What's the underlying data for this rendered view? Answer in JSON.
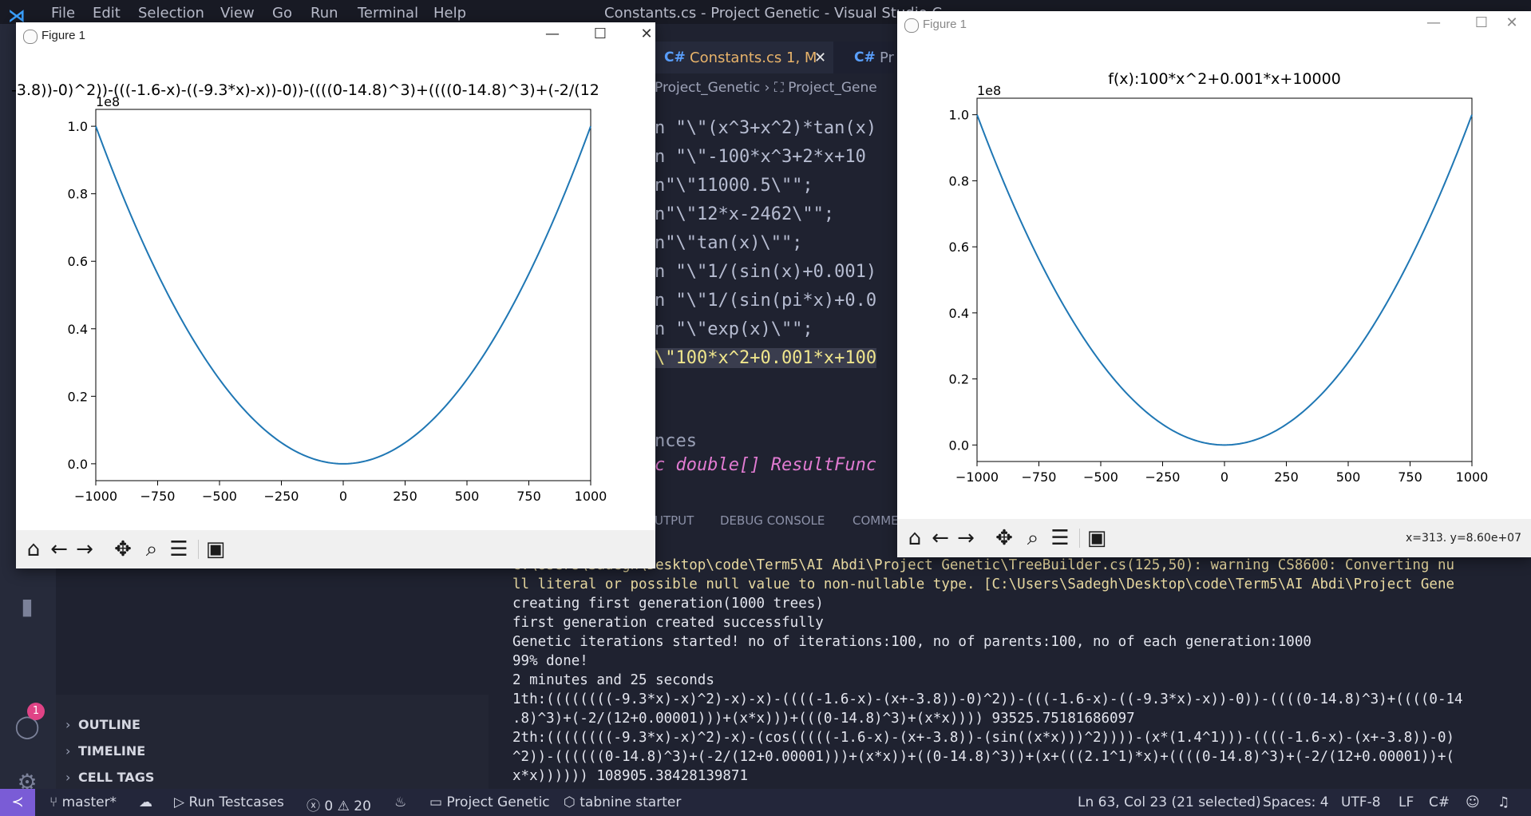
{
  "vscode": {
    "menu": [
      "File",
      "Edit",
      "Selection",
      "View",
      "Go",
      "Run",
      "Terminal",
      "Help"
    ],
    "window_title": "Constants.cs - Project Genetic - Visual Studio C",
    "tabs": [
      {
        "lang": "C#",
        "name": "Constants.cs 1, M",
        "close": "✕"
      },
      {
        "lang": "C#",
        "name": "Pr"
      }
    ],
    "breadcrumb": [
      "Project_Genetic",
      "Project_Gene"
    ],
    "code_lines": [
      "n \"\\\"(x^3+x^2)*tan(x)",
      "n \"\\\"-100*x^3+2*x+10",
      "n\"\\\"11000.5\\\"\";",
      "n\"\\\"12*x-2462\\\"\";",
      "n\"\\\"tan(x)\\\"\";",
      "n \"\\\"1/(sin(x)+0.001)",
      "n \"\\\"1/(sin(pi*x)+0.0",
      "n \"\\\"exp(x)\\\"\";",
      "\\\"100*x^2+0.001*x+100",
      "",
      "",
      "nces",
      "c double[] ResultFunc"
    ],
    "panel_tabs": [
      "UTPUT",
      "DEBUG CONSOLE",
      "COMME"
    ],
    "sidebar_sections": [
      "OUTLINE",
      "TIMELINE",
      "CELL TAGS"
    ],
    "badge_count": "1",
    "terminal_lines": [
      "C:\\Users\\Sadegh\\Desktop\\code\\Term5\\AI Abdi\\Project Genetic\\TreeBuilder.cs(125,50): warning CS8600: Converting nu",
      "ll literal or possible null value to non-nullable type. [C:\\Users\\Sadegh\\Desktop\\code\\Term5\\AI Abdi\\Project Gene",
      "creating first generation(1000 trees)",
      "first generation created successfully",
      "Genetic iterations started! no of iterations:100, no of parents:100, no of each generation:1000",
      "99% done!",
      "2 minutes and 25 seconds",
      "1th:((((((((-9.3*x)-x)^2)-x)-x)-((((-1.6-x)-(x+-3.8))-0)^2))-(((-1.6-x)-((-9.3*x)-x))-0))-((((0-14.8)^3)+((((0-14",
      ".8)^3)+(-2/(12+0.00001)))+(x*x)))+(((0-14.8)^3)+(x*x)))) 93525.75181686097",
      "2th:((((((((-9.3*x)-x)^2)-x)-(cos(((((-1.6-x)-(x+-3.8))-(sin((x*x)))^2))))-(x*(1.4^1)))-((((-1.6-x)-(x+-3.8))-0)",
      "^2))-((((((0-14.8)^3)+(-2/(12+0.00001)))+(x*x))+((0-14.8)^3))+(x+(((2.1^1)*x)+((((0-14.8)^3)+(-2/(12+0.00001))+(",
      "x*x)))))) 108905.38428139871"
    ],
    "status": {
      "remote": "≺",
      "branch": "master*",
      "run": "Run Testcases",
      "errors": "0",
      "warnings": "20",
      "project": "Project Genetic",
      "tabnine": "tabnine starter",
      "position": "Ln 63, Col 23 (21 selected)",
      "spaces": "Spaces: 4",
      "encoding": "UTF-8",
      "eol": "LF",
      "language": "C#"
    }
  },
  "figure_left": {
    "window_title": "Figure 1",
    "coord_readout": "",
    "chart_data": {
      "type": "line",
      "title": "-3.8))-0)^2))-(((-1.6-x)-((-9.3*x)-x))-0))-((((0-14.8)^3)+((((0-14.8)^3)+(-2/(12",
      "function": "parabola",
      "x": [
        -1000,
        -750,
        -500,
        -250,
        0,
        250,
        500,
        750,
        1000
      ],
      "y": [
        1.0,
        0.5625,
        0.25,
        0.0625,
        0.0,
        0.0625,
        0.25,
        0.5625,
        1.0
      ],
      "y_scale_label": "1e8",
      "xlim": [
        -1000,
        1000
      ],
      "ylim": [
        -0.05,
        1.05
      ],
      "x_ticks": [
        "−1000",
        "−750",
        "−500",
        "−250",
        "0",
        "250",
        "500",
        "750",
        "1000"
      ],
      "y_ticks": [
        "0.0",
        "0.2",
        "0.4",
        "0.6",
        "0.8",
        "1.0"
      ],
      "color": "#1f77b4",
      "grid": false
    }
  },
  "figure_right": {
    "window_title": "Figure 1",
    "coord_readout": "x=313. y=8.60e+07",
    "chart_data": {
      "type": "line",
      "title": "f(x):100*x^2+0.001*x+10000",
      "function": "parabola",
      "x": [
        -1000,
        -750,
        -500,
        -250,
        0,
        250,
        500,
        750,
        1000
      ],
      "y": [
        1.0,
        0.5625,
        0.25,
        0.0625,
        0.0,
        0.0625,
        0.25,
        0.5625,
        1.0
      ],
      "y_scale_label": "1e8",
      "xlim": [
        -1000,
        1000
      ],
      "ylim": [
        -0.05,
        1.05
      ],
      "x_ticks": [
        "−1000",
        "−750",
        "−500",
        "−250",
        "0",
        "250",
        "500",
        "750",
        "1000"
      ],
      "y_ticks": [
        "0.0",
        "0.2",
        "0.4",
        "0.6",
        "0.8",
        "1.0"
      ],
      "color": "#1f77b4",
      "grid": false
    }
  },
  "toolbar_icons": [
    "home-icon",
    "back-icon",
    "forward-icon",
    "pan-icon",
    "zoom-icon",
    "configure-icon",
    "save-icon"
  ]
}
